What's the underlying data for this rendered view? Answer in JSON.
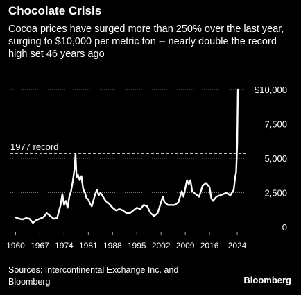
{
  "header": {
    "title": "Chocolate Crisis",
    "subtitle": "Cocoa prices have surged more than 250% over the last year, surging to $10,000 per metric ton -- nearly double the record high set 46 years ago"
  },
  "footer": {
    "source": "Sources: Intercontinental Exchange Inc. and Bloomberg",
    "brand": "Bloomberg"
  },
  "colors": {
    "background": "#000000",
    "line": "#ffffff",
    "grid": "#777777",
    "text": "#ffffff"
  },
  "chart_data": {
    "type": "line",
    "title": "Chocolate Crisis",
    "xlim": [
      1958.5,
      2027.2
    ],
    "ylim": [
      0,
      10000
    ],
    "x_ticks": [
      1960,
      1967,
      1974,
      1981,
      1988,
      1995,
      2002,
      2009,
      2016,
      2024
    ],
    "y_ticks": [
      0,
      2500,
      5000,
      7500,
      10000
    ],
    "y_tick_labels": [
      "0",
      "2,500",
      "5,000",
      "7,500",
      "$10,000"
    ],
    "grid": "horizontal dotted",
    "reference_line": {
      "label": "1977 record",
      "value": 5350
    },
    "series": [
      {
        "x": [
          1960,
          1961,
          1962,
          1963,
          1964,
          1965,
          1966,
          1967,
          1968,
          1969,
          1970,
          1971,
          1972,
          1973,
          1973.5,
          1974,
          1974.5,
          1975,
          1975.5,
          1976,
          1976.5,
          1977,
          1977.3,
          1977.6,
          1978,
          1978.5,
          1979,
          1979.5,
          1980,
          1980.5,
          1981,
          1981.5,
          1982,
          1983,
          1983.5,
          1984,
          1984.5,
          1985,
          1986,
          1987,
          1988,
          1989,
          1990,
          1991,
          1992,
          1993,
          1994,
          1995,
          1996,
          1997,
          1998,
          1999,
          2000,
          2001,
          2002,
          2002.5,
          2003,
          2004,
          2005,
          2006,
          2007,
          2008,
          2008.5,
          2009,
          2009.5,
          2010,
          2010.5,
          2011,
          2012,
          2013,
          2014,
          2014.5,
          2015,
          2016,
          2016.5,
          2017,
          2018,
          2019,
          2020,
          2021,
          2022,
          2023,
          2023.4,
          2023.7,
          2024,
          2024.1,
          2024.2
        ],
        "y": [
          700,
          600,
          550,
          650,
          600,
          300,
          500,
          600,
          700,
          1000,
          800,
          600,
          650,
          1600,
          2400,
          1600,
          1900,
          1400,
          2200,
          2600,
          3300,
          4200,
          5300,
          3600,
          3800,
          3400,
          3700,
          2800,
          2500,
          2100,
          2000,
          1700,
          1500,
          2400,
          2700,
          2300,
          2500,
          2300,
          1900,
          1700,
          1400,
          1200,
          1300,
          1200,
          1000,
          1000,
          1200,
          1400,
          1300,
          1600,
          1500,
          1000,
          800,
          1000,
          1800,
          2200,
          1800,
          1600,
          1600,
          1600,
          1800,
          2600,
          2200,
          2800,
          3400,
          3100,
          3400,
          2600,
          2400,
          2200,
          3000,
          3100,
          3200,
          2900,
          2100,
          1900,
          2200,
          2300,
          2400,
          2500,
          2300,
          2700,
          3600,
          4000,
          6000,
          8000,
          10000
        ]
      }
    ]
  }
}
